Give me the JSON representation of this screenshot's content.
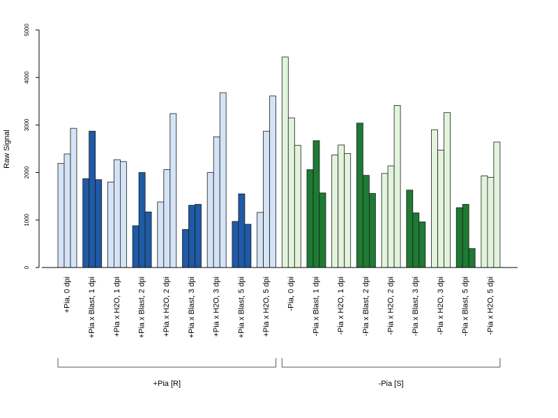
{
  "chart_data": {
    "type": "bar",
    "ylabel": "Raw Signal",
    "ylim": [
      0,
      5000
    ],
    "yticks": [
      0,
      1000,
      2000,
      3000,
      4000,
      5000
    ],
    "bars_per_group": 3,
    "groups": [
      {
        "label": "+Pia, 0 dpi",
        "values": [
          2190,
          2390,
          2930
        ],
        "color": "#d4e3f5"
      },
      {
        "label": "+Pia x Blast, 1 dpi",
        "values": [
          1870,
          2870,
          1850
        ],
        "color": "#1f5aa6"
      },
      {
        "label": "+Pia x H2O, 1 dpi",
        "values": [
          1800,
          2270,
          2230
        ],
        "color": "#d4e3f5"
      },
      {
        "label": "+Pia x Blast, 2 dpi",
        "values": [
          880,
          2000,
          1170
        ],
        "color": "#1f5aa6"
      },
      {
        "label": "+Pia x H2O, 2 dpi",
        "values": [
          1380,
          2060,
          3240
        ],
        "color": "#d4e3f5"
      },
      {
        "label": "+Pia x Blast, 3 dpi",
        "values": [
          800,
          1310,
          1330
        ],
        "color": "#1f5aa6"
      },
      {
        "label": "+Pia x H2O, 3 dpi",
        "values": [
          2000,
          2750,
          3680
        ],
        "color": "#d4e3f5"
      },
      {
        "label": "+Pia x Blast, 5 dpi",
        "values": [
          970,
          1550,
          910
        ],
        "color": "#1f5aa6"
      },
      {
        "label": "+Pia x H2O, 5 dpi",
        "values": [
          1160,
          2870,
          3610
        ],
        "color": "#d4e3f5"
      },
      {
        "label": "-Pia, 0 dpi",
        "values": [
          4430,
          3150,
          2570
        ],
        "color": "#e2f4dc"
      },
      {
        "label": "-Pia x Blast, 1 dpi",
        "values": [
          2060,
          2670,
          1570
        ],
        "color": "#1f7a34"
      },
      {
        "label": "-Pia x H2O, 1 dpi",
        "values": [
          2370,
          2580,
          2400
        ],
        "color": "#e2f4dc"
      },
      {
        "label": "-Pia x Blast, 2 dpi",
        "values": [
          3040,
          1940,
          1560
        ],
        "color": "#1f7a34"
      },
      {
        "label": "-Pia x H2O, 2 dpi",
        "values": [
          1980,
          2140,
          3410
        ],
        "color": "#e2f4dc"
      },
      {
        "label": "-Pia x Blast, 3 dpi",
        "values": [
          1630,
          1150,
          960
        ],
        "color": "#1f7a34"
      },
      {
        "label": "-Pia x H2O, 3 dpi",
        "values": [
          2900,
          2470,
          3260
        ],
        "color": "#e2f4dc"
      },
      {
        "label": "-Pia x Blast, 5 dpi",
        "values": [
          1260,
          1330,
          400
        ],
        "color": "#1f7a34"
      },
      {
        "label": "-Pia x H2O, 5 dpi",
        "values": [
          1930,
          1900,
          2640
        ],
        "color": "#e2f4dc"
      }
    ],
    "brackets": [
      {
        "label": "+Pia [R]",
        "first_group": 0,
        "last_group": 8
      },
      {
        "label": "-Pia [S]",
        "first_group": 9,
        "last_group": 17
      }
    ]
  }
}
